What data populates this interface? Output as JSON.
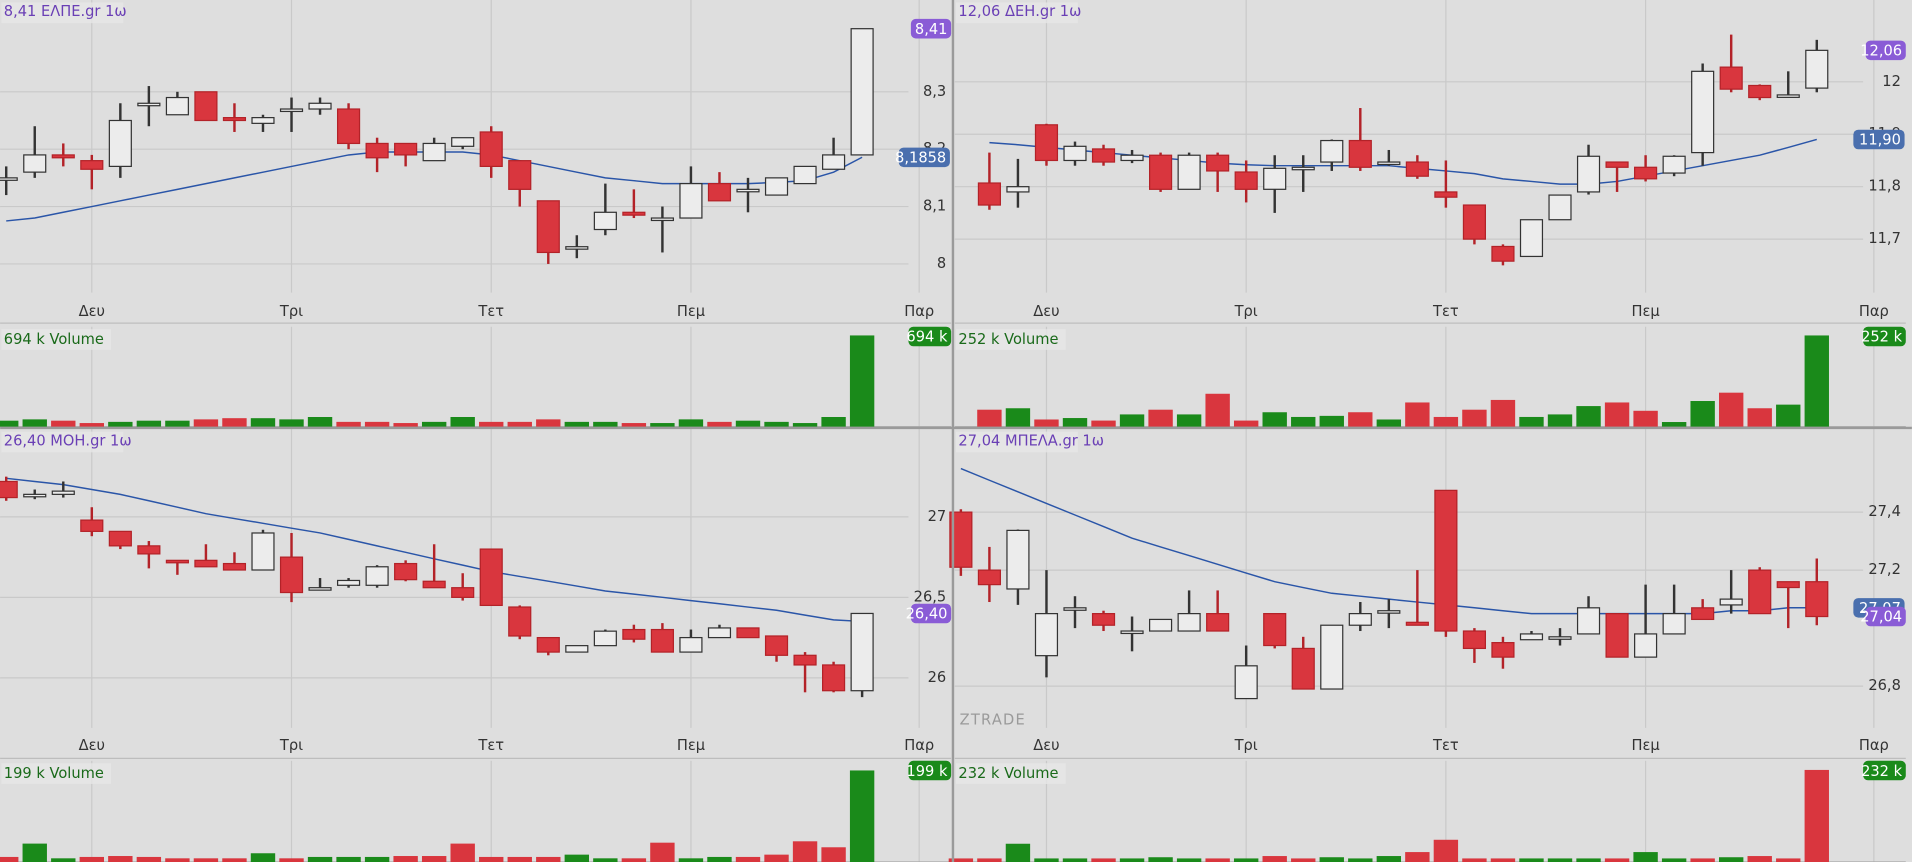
{
  "chart_data": [
    {
      "type": "candlestick",
      "title": "8,41 ΕΛΠΕ.gr 1ω",
      "last_label": "8,41",
      "ma_label": "8,1858",
      "up_color": "#ececec",
      "down_color": "#d9363e",
      "ma_color": "#2a55a8",
      "open": [
        8.15,
        8.16,
        8.19,
        8.18,
        8.17,
        8.28,
        8.26,
        8.3,
        8.255,
        8.245,
        8.27,
        8.27,
        8.27,
        8.21,
        8.21,
        8.18,
        8.205,
        8.23,
        8.18,
        8.11,
        8.03,
        8.06,
        8.09,
        8.08,
        8.08,
        8.14,
        8.13,
        8.12,
        8.14,
        8.165,
        8.19
      ],
      "high": [
        8.17,
        8.24,
        8.21,
        8.19,
        8.28,
        8.31,
        8.3,
        8.3,
        8.28,
        8.26,
        8.29,
        8.29,
        8.28,
        8.22,
        8.21,
        8.22,
        8.22,
        8.24,
        8.18,
        8.11,
        8.05,
        8.14,
        8.13,
        8.1,
        8.17,
        8.16,
        8.15,
        8.15,
        8.17,
        8.22,
        8.41
      ],
      "low": [
        8.12,
        8.15,
        8.17,
        8.13,
        8.15,
        8.24,
        8.26,
        8.25,
        8.23,
        8.23,
        8.23,
        8.26,
        8.2,
        8.16,
        8.17,
        8.18,
        8.2,
        8.15,
        8.1,
        8.0,
        8.01,
        8.05,
        8.08,
        8.02,
        8.08,
        8.11,
        8.09,
        8.12,
        8.14,
        8.165,
        8.19
      ],
      "close": [
        8.15,
        8.19,
        8.185,
        8.165,
        8.25,
        8.28,
        8.29,
        8.25,
        8.25,
        8.255,
        8.27,
        8.28,
        8.21,
        8.185,
        8.19,
        8.21,
        8.22,
        8.17,
        8.13,
        8.02,
        8.03,
        8.09,
        8.085,
        8.08,
        8.14,
        8.11,
        8.13,
        8.15,
        8.17,
        8.19,
        8.41
      ],
      "ma": [
        8.075,
        8.08,
        8.09,
        8.1,
        8.11,
        8.12,
        8.13,
        8.14,
        8.15,
        8.16,
        8.17,
        8.18,
        8.19,
        8.195,
        8.195,
        8.195,
        8.195,
        8.19,
        8.18,
        8.17,
        8.16,
        8.15,
        8.145,
        8.14,
        8.14,
        8.14,
        8.14,
        8.142,
        8.145,
        8.16,
        8.1858
      ],
      "ylim": [
        7.95,
        8.46
      ],
      "yticks": [
        8,
        {
          "value": 8.1,
          "label": "8,1"
        },
        {
          "value": 8.2,
          "label": "8,2"
        },
        {
          "value": 8.3,
          "label": "8,3"
        }
      ],
      "xticks": [
        {
          "value": 3,
          "label": "Δευ"
        },
        {
          "value": 10,
          "label": "Τρι"
        },
        {
          "value": 17,
          "label": "Τετ"
        },
        {
          "value": 24,
          "label": "Πεμ"
        },
        {
          "value": 32,
          "label": "Παρ"
        }
      ],
      "volume": {
        "title": "694 k Volume",
        "label": "694 k",
        "ylim": [
          0,
          760
        ],
        "up_color": "#1a8a1a",
        "down_color": "#d9363e",
        "values": [
          46,
          56,
          46,
          28,
          37,
          46,
          46,
          56,
          65,
          65,
          56,
          74,
          37,
          37,
          28,
          37,
          74,
          37,
          37,
          56,
          37,
          37,
          28,
          28,
          56,
          37,
          46,
          37,
          28,
          74,
          694
        ]
      }
    },
    {
      "type": "candlestick",
      "title": "12,06 ΔΕΗ.gr 1ω",
      "last_label": "12,06",
      "ma_label": "11,90",
      "up_color": "#ececec",
      "down_color": "#d9363e",
      "ma_color": "#2a55a8",
      "open": [
        11.807,
        11.79,
        11.918,
        11.85,
        11.872,
        11.85,
        11.86,
        11.795,
        11.86,
        11.828,
        11.795,
        11.837,
        11.847,
        11.888,
        11.847,
        11.847,
        11.79,
        11.765,
        11.686,
        11.667,
        11.737,
        11.79,
        11.847,
        11.837,
        11.826,
        11.865,
        12.028,
        11.993,
        11.975,
        11.988
      ],
      "high": [
        11.865,
        11.853,
        11.92,
        11.886,
        11.88,
        11.87,
        11.865,
        11.865,
        11.865,
        11.85,
        11.86,
        11.86,
        11.89,
        11.95,
        11.87,
        11.86,
        11.85,
        11.765,
        11.69,
        11.737,
        11.784,
        11.88,
        11.847,
        11.86,
        11.86,
        12.035,
        12.09,
        11.995,
        12.02,
        12.08
      ],
      "low": [
        11.756,
        11.76,
        11.84,
        11.84,
        11.84,
        11.845,
        11.79,
        11.795,
        11.79,
        11.77,
        11.75,
        11.79,
        11.83,
        11.83,
        11.84,
        11.815,
        11.76,
        11.69,
        11.65,
        11.667,
        11.737,
        11.785,
        11.79,
        11.81,
        11.82,
        11.84,
        11.98,
        11.965,
        11.973,
        11.98
      ],
      "close": [
        11.765,
        11.8,
        11.85,
        11.877,
        11.847,
        11.86,
        11.795,
        11.86,
        11.83,
        11.795,
        11.835,
        11.837,
        11.888,
        11.837,
        11.847,
        11.82,
        11.78,
        11.7,
        11.658,
        11.737,
        11.784,
        11.858,
        11.837,
        11.815,
        11.858,
        12.02,
        11.986,
        11.97,
        11.975,
        12.06
      ],
      "ma": [
        11.884,
        11.88,
        11.875,
        11.87,
        11.865,
        11.86,
        11.855,
        11.85,
        11.845,
        11.842,
        11.84,
        11.84,
        11.84,
        11.84,
        11.84,
        11.835,
        11.83,
        11.825,
        11.815,
        11.81,
        11.805,
        11.805,
        11.81,
        11.82,
        11.83,
        11.84,
        11.85,
        11.86,
        11.875,
        11.89
      ],
      "ylim": [
        11.598,
        12.156
      ],
      "yticks": [
        {
          "value": 11.7,
          "label": "11,7"
        },
        {
          "value": 11.8,
          "label": "11,8"
        },
        {
          "value": 11.9,
          "label": "11,9"
        },
        12
      ],
      "xticks": [
        {
          "value": 2,
          "label": "Δευ"
        },
        {
          "value": 9,
          "label": "Τρι"
        },
        {
          "value": 16,
          "label": "Τετ"
        },
        {
          "value": 23,
          "label": "Πεμ"
        },
        {
          "value": 31,
          "label": "Παρ"
        }
      ],
      "volume": {
        "title": "252 k Volume",
        "label": "252 k",
        "ylim": [
          0,
          276
        ],
        "up_color": "#1a8a1a",
        "down_color": "#d9363e",
        "values": [
          47,
          51,
          20,
          24,
          17,
          34,
          47,
          34,
          91,
          17,
          40,
          27,
          30,
          40,
          20,
          67,
          27,
          47,
          74,
          27,
          34,
          57,
          67,
          44,
          13,
          71,
          94,
          51,
          61,
          252
        ]
      }
    },
    {
      "type": "candlestick",
      "title": "26,40 ΜΟΗ.gr 1ω",
      "last_label": "26,40",
      "up_color": "#ececec",
      "down_color": "#d9363e",
      "ma_color": "#2a55a8",
      "open": [
        27.22,
        27.14,
        27.14,
        26.98,
        26.91,
        26.82,
        26.73,
        26.73,
        26.71,
        26.67,
        26.75,
        26.56,
        26.575,
        26.575,
        26.71,
        26.6,
        26.56,
        26.8,
        26.44,
        26.25,
        26.16,
        26.2,
        26.3,
        26.3,
        26.16,
        26.25,
        26.31,
        26.26,
        26.14,
        26.08,
        25.92
      ],
      "high": [
        27.25,
        27.17,
        27.22,
        27.06,
        26.91,
        26.85,
        26.73,
        26.83,
        26.78,
        26.92,
        26.9,
        26.62,
        26.62,
        26.7,
        26.73,
        26.83,
        26.65,
        26.8,
        26.45,
        26.25,
        26.2,
        26.3,
        26.33,
        26.34,
        26.3,
        26.33,
        26.31,
        26.26,
        26.16,
        26.1,
        26.4
      ],
      "low": [
        27.1,
        27.11,
        27.12,
        26.88,
        26.8,
        26.68,
        26.64,
        26.69,
        26.67,
        26.67,
        26.47,
        26.56,
        26.56,
        26.56,
        26.6,
        26.56,
        26.48,
        26.45,
        26.24,
        26.14,
        26.16,
        26.2,
        26.22,
        26.16,
        26.16,
        26.25,
        26.25,
        26.1,
        25.91,
        25.91,
        25.88
      ],
      "close": [
        27.12,
        27.14,
        27.16,
        26.91,
        26.82,
        26.77,
        26.72,
        26.69,
        26.67,
        26.9,
        26.53,
        26.56,
        26.605,
        26.69,
        26.61,
        26.56,
        26.5,
        26.45,
        26.26,
        26.16,
        26.2,
        26.29,
        26.24,
        26.16,
        26.25,
        26.31,
        26.25,
        26.14,
        26.08,
        25.92,
        26.4
      ],
      "ma": [
        27.24,
        27.22,
        27.2,
        27.17,
        27.14,
        27.1,
        27.06,
        27.02,
        26.99,
        26.96,
        26.93,
        26.9,
        26.86,
        26.82,
        26.78,
        26.74,
        26.7,
        26.66,
        26.63,
        26.6,
        26.57,
        26.54,
        26.52,
        26.5,
        26.48,
        26.46,
        26.44,
        26.42,
        26.39,
        26.36,
        26.35
      ],
      "ylim": [
        25.689,
        27.545
      ],
      "yticks": [
        26,
        {
          "value": 26.5,
          "label": "26,5"
        },
        27
      ],
      "xticks": [
        {
          "value": 3,
          "label": "Δευ"
        },
        {
          "value": 10,
          "label": "Τρι"
        },
        {
          "value": 17,
          "label": "Τετ"
        },
        {
          "value": 24,
          "label": "Πεμ"
        },
        {
          "value": 32,
          "label": "Παρ"
        }
      ],
      "volume": {
        "title": "199 k Volume",
        "label": "199 k",
        "ylim": [
          0,
          220
        ],
        "up_color": "#1a8a1a",
        "down_color": "#d9363e",
        "values": [
          11,
          40,
          8,
          11,
          13,
          11,
          8,
          8,
          8,
          19,
          8,
          11,
          11,
          11,
          13,
          13,
          40,
          11,
          11,
          11,
          16,
          8,
          8,
          42,
          8,
          11,
          11,
          16,
          45,
          32,
          199
        ]
      }
    },
    {
      "type": "candlestick",
      "title": "27,04 ΜΠΕΛΑ.gr 1ω",
      "last_label": "27,04",
      "ma_label": "27,07",
      "watermark": "ZTRADE",
      "up_color": "#ececec",
      "down_color": "#d9363e",
      "ma_color": "#2a55a8",
      "open": [
        27.4,
        27.2,
        27.135,
        26.905,
        27.07,
        27.05,
        26.99,
        26.99,
        26.99,
        27.05,
        26.757,
        27.05,
        26.93,
        26.79,
        27.01,
        27.06,
        27.02,
        27.475,
        26.99,
        26.95,
        26.96,
        26.97,
        26.98,
        27.05,
        26.9,
        26.98,
        27.07,
        27.08,
        27.2,
        27.16,
        27.16
      ],
      "high": [
        27.41,
        27.28,
        27.34,
        27.2,
        27.11,
        27.06,
        27.04,
        27.03,
        27.13,
        27.13,
        26.94,
        27.05,
        26.97,
        27.01,
        27.09,
        27.1,
        27.2,
        27.475,
        27.0,
        26.97,
        26.99,
        27.0,
        27.11,
        27.05,
        27.15,
        27.15,
        27.1,
        27.2,
        27.21,
        27.16,
        27.24
      ],
      "low": [
        27.18,
        27.09,
        27.08,
        26.83,
        27.0,
        26.99,
        26.92,
        26.99,
        26.99,
        26.99,
        26.76,
        26.93,
        26.79,
        26.79,
        26.99,
        27.0,
        27.01,
        26.97,
        26.88,
        26.86,
        26.96,
        26.94,
        26.98,
        26.9,
        26.9,
        26.98,
        27.03,
        27.05,
        27.05,
        27.0,
        27.01
      ],
      "close": [
        27.21,
        27.15,
        27.337,
        27.05,
        27.07,
        27.01,
        26.99,
        27.03,
        27.05,
        26.99,
        26.87,
        26.94,
        26.79,
        27.01,
        27.05,
        27.06,
        27.01,
        26.99,
        26.93,
        26.9,
        26.98,
        26.97,
        27.07,
        26.9,
        26.98,
        27.05,
        27.03,
        27.1,
        27.05,
        27.14,
        27.04
      ],
      "ma": [
        27.55,
        27.51,
        27.47,
        27.43,
        27.39,
        27.35,
        27.31,
        27.28,
        27.25,
        27.22,
        27.19,
        27.16,
        27.14,
        27.12,
        27.11,
        27.1,
        27.09,
        27.08,
        27.07,
        27.06,
        27.05,
        27.05,
        27.05,
        27.05,
        27.05,
        27.05,
        27.05,
        27.06,
        27.06,
        27.07,
        27.07
      ],
      "ylim": [
        26.656,
        27.686
      ],
      "yticks": [
        {
          "value": 26.8,
          "label": "26,8"
        },
        {
          "value": 27.2,
          "label": "27,2"
        },
        {
          "value": 27.4,
          "label": "27,4"
        }
      ],
      "xticks": [
        {
          "value": 3,
          "label": "Δευ"
        },
        {
          "value": 10,
          "label": "Τρι"
        },
        {
          "value": 17,
          "label": "Τετ"
        },
        {
          "value": 24,
          "label": "Πεμ"
        },
        {
          "value": 32,
          "label": "Παρ"
        }
      ],
      "volume": {
        "title": "232 k Volume",
        "label": "232 k",
        "ylim": [
          0,
          255
        ],
        "up_color": "#1a8a1a",
        "down_color": "#d9363e",
        "values": [
          9,
          9,
          46,
          9,
          9,
          9,
          9,
          12,
          9,
          9,
          9,
          15,
          9,
          12,
          9,
          15,
          25,
          56,
          9,
          9,
          9,
          9,
          9,
          9,
          25,
          9,
          9,
          12,
          15,
          9,
          232
        ]
      }
    }
  ]
}
